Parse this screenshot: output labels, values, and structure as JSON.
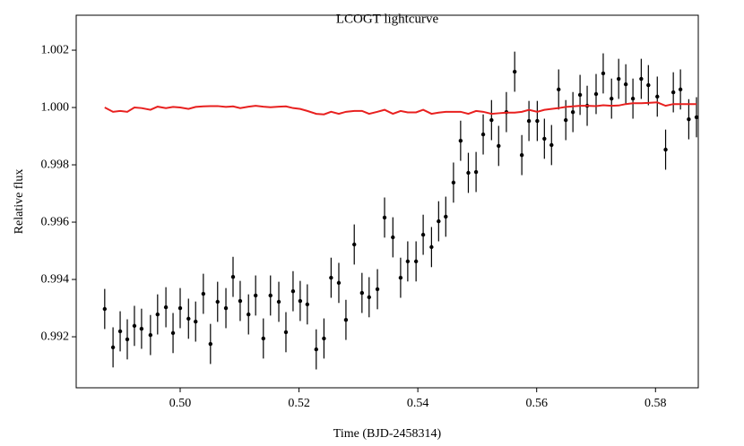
{
  "chart_data": {
    "type": "scatter",
    "title": "LCOGT lightcurve",
    "x_label": "Time (BJD-2458314)",
    "y_label": "Relative flux",
    "xlim": [
      0.4825,
      0.5872
    ],
    "ylim": [
      0.99022,
      1.00322
    ],
    "xticks": [
      {
        "value": 0.5,
        "label": "0.50"
      },
      0.52,
      0.54,
      0.56,
      0.58
    ],
    "yticks": [
      0.992,
      0.994,
      0.996,
      0.998,
      {
        "value": 1,
        "label": "1.000"
      },
      1.002
    ],
    "color": "#000000",
    "yerr": 0.0007,
    "x": [
      0.4873,
      0.4887,
      0.4899,
      0.4911,
      0.4923,
      0.4935,
      0.495,
      0.4962,
      0.4976,
      0.4988,
      0.5,
      0.5014,
      0.5026,
      0.5039,
      0.5051,
      0.5063,
      0.5077,
      0.5089,
      0.5101,
      0.5115,
      0.5127,
      0.514,
      0.5152,
      0.5166,
      0.5178,
      0.519,
      0.5202,
      0.5214,
      0.5229,
      0.5242,
      0.5254,
      0.5267,
      0.5279,
      0.5293,
      0.5306,
      0.5318,
      0.5332,
      0.5344,
      0.5358,
      0.5371,
      0.5383,
      0.5397,
      0.5409,
      0.5423,
      0.5435,
      0.5447,
      0.546,
      0.5472,
      0.5485,
      0.5498,
      0.551,
      0.5524,
      0.5536,
      0.5549,
      0.5563,
      0.5575,
      0.5587,
      0.5601,
      0.5613,
      0.5625,
      0.5637,
      0.5649,
      0.5661,
      0.5673,
      0.5685,
      0.57,
      0.5712,
      0.5726,
      0.5738,
      0.575,
      0.5762,
      0.5776,
      0.5788,
      0.5803,
      0.5817,
      0.583,
      0.5842,
      0.5856,
      0.5869
    ],
    "values": [
      0.99297,
      0.99163,
      0.99219,
      0.99191,
      0.99238,
      0.99228,
      0.99206,
      0.99278,
      0.99303,
      0.99213,
      0.993,
      0.99263,
      0.99253,
      0.9935,
      0.99175,
      0.99322,
      0.993,
      0.99409,
      0.99325,
      0.99278,
      0.99344,
      0.99194,
      0.99344,
      0.99322,
      0.99216,
      0.99359,
      0.99325,
      0.99313,
      0.99156,
      0.99194,
      0.99406,
      0.99388,
      0.99259,
      0.99522,
      0.99353,
      0.99338,
      0.99366,
      0.99616,
      0.99547,
      0.99406,
      0.99463,
      0.99463,
      0.99556,
      0.99513,
      0.99603,
      0.99619,
      0.99738,
      0.99884,
      0.99772,
      0.99775,
      0.99906,
      0.99956,
      0.99866,
      0.99984,
      1.00125,
      0.99834,
      0.99953,
      0.99953,
      0.99891,
      0.99869,
      1.00063,
      0.99956,
      0.99984,
      1.00044,
      1.00006,
      1.00047,
      1.00119,
      1.00031,
      1.001,
      1.00081,
      1.00031,
      1.001,
      1.00078,
      1.00038,
      0.99853,
      1.00053,
      1.00063,
      0.99959,
      0.99966
    ],
    "model": {
      "color": "#e8201f",
      "values": [
        1.0,
        0.99985,
        0.99988,
        0.99985,
        1.0,
        0.99998,
        0.99992,
        1.00003,
        0.99998,
        1.00002,
        1.0,
        0.99995,
        1.00002,
        1.00004,
        1.00005,
        1.00005,
        1.00002,
        1.00004,
        0.99998,
        1.00003,
        1.00006,
        1.00003,
        1.00001,
        1.00003,
        1.00004,
        0.99998,
        0.99995,
        0.99988,
        0.99978,
        0.99976,
        0.99985,
        0.99978,
        0.99985,
        0.99988,
        0.99988,
        0.99978,
        0.99985,
        0.99992,
        0.99978,
        0.99988,
        0.99983,
        0.99983,
        0.99992,
        0.99978,
        0.99982,
        0.99985,
        0.99985,
        0.99985,
        0.99978,
        0.99988,
        0.99985,
        0.99978,
        0.9998,
        0.99982,
        0.99982,
        0.99985,
        0.99992,
        0.99985,
        0.99992,
        0.99995,
        0.99998,
        1.00002,
        1.00004,
        1.00006,
        1.00006,
        1.00005,
        1.00008,
        1.00006,
        1.00007,
        1.00012,
        1.00015,
        1.00015,
        1.00016,
        1.00018,
        1.00006,
        1.00012,
        1.00012,
        1.00012,
        1.00012
      ]
    }
  }
}
